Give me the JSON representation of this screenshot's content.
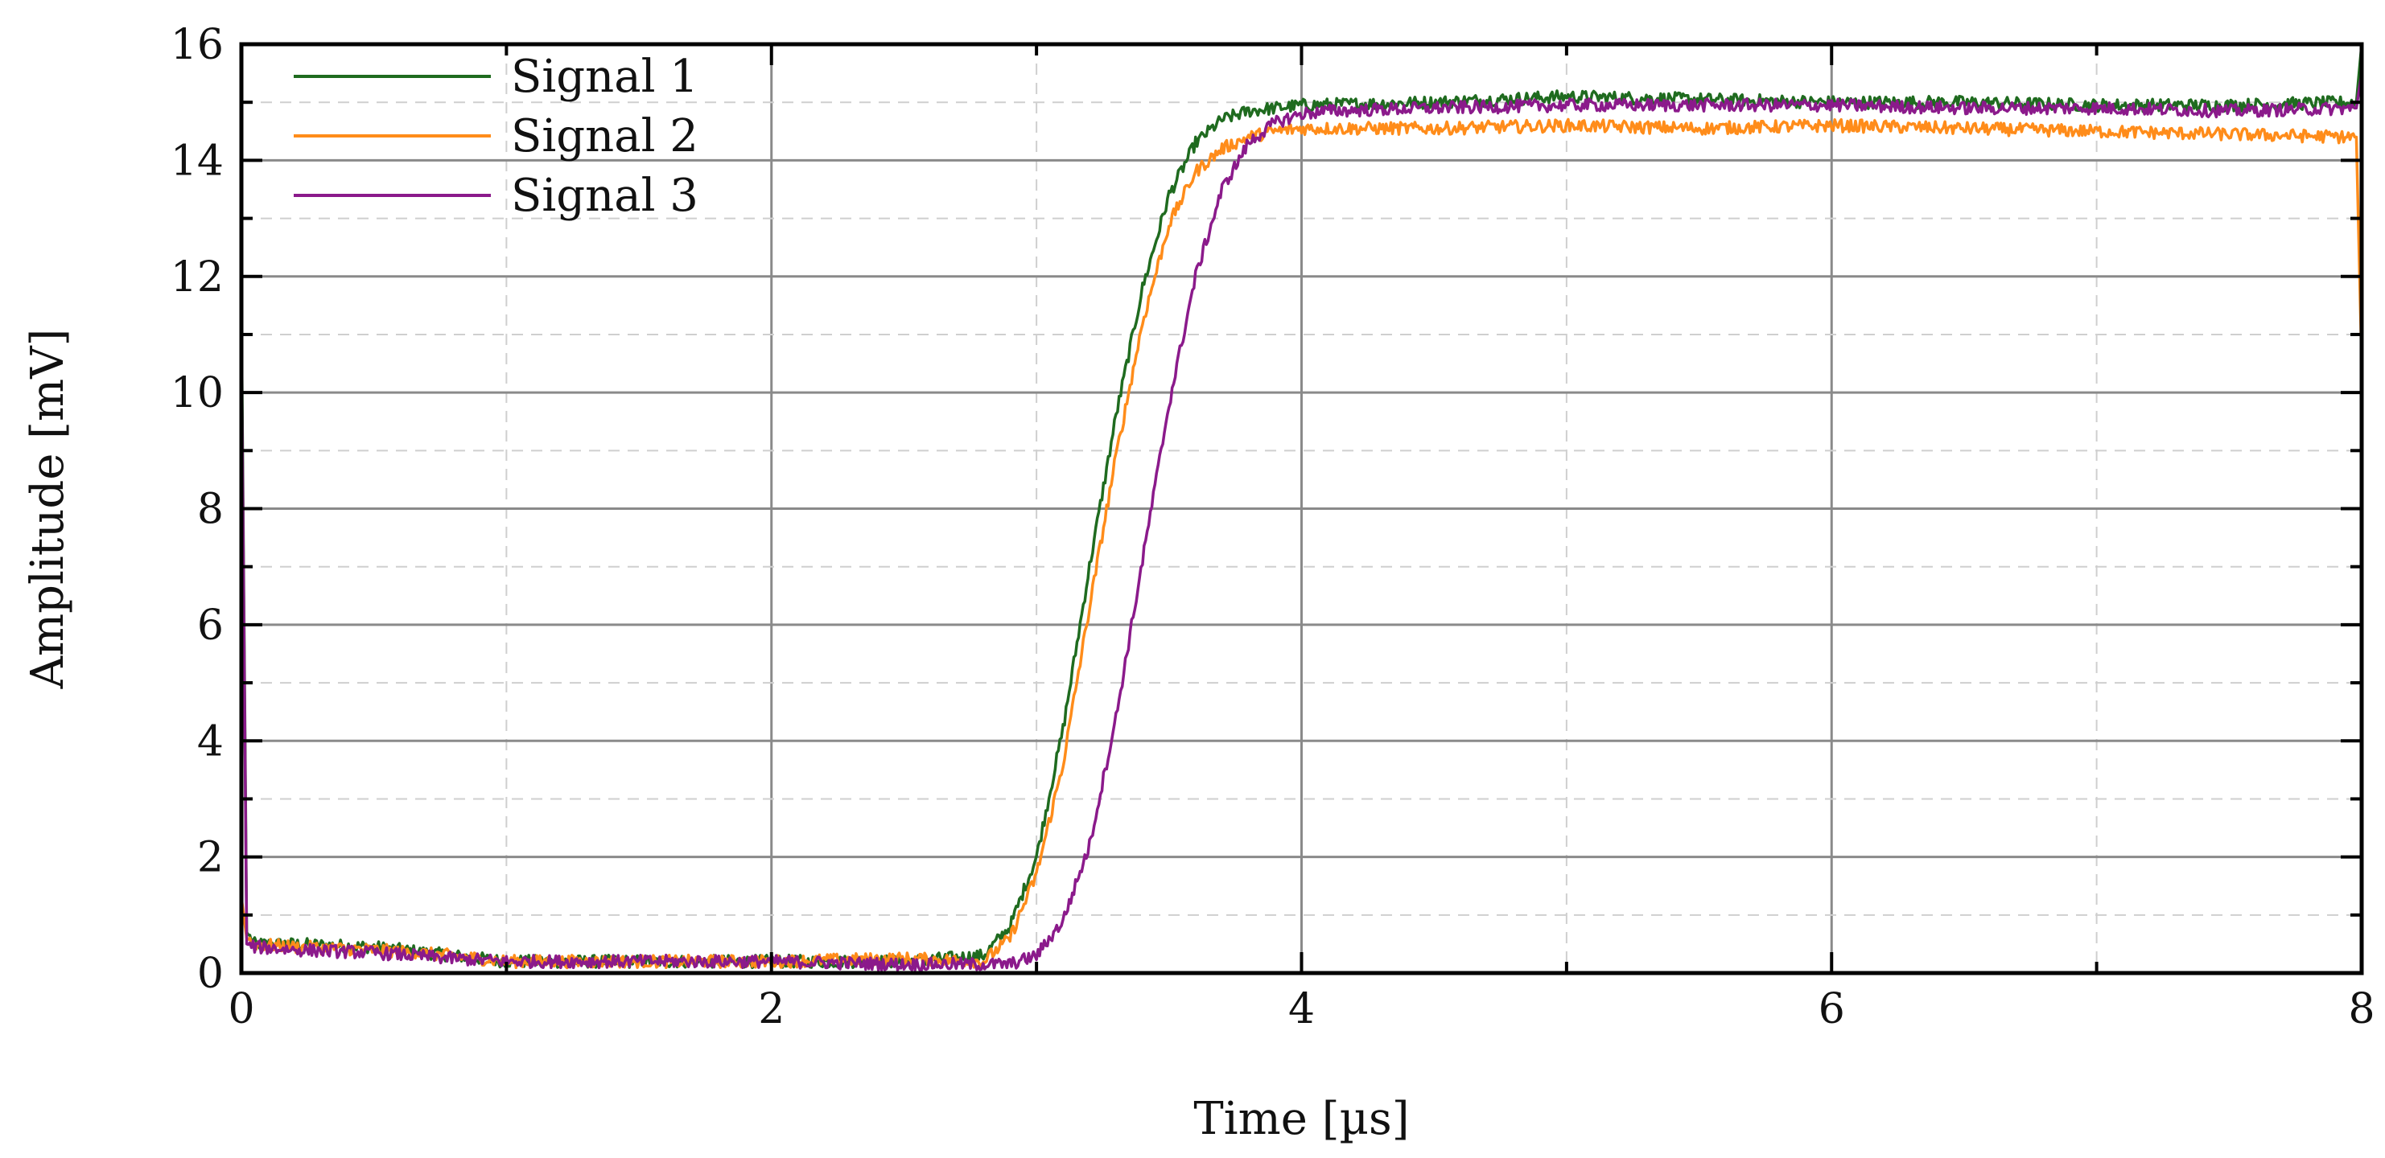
{
  "chart_data": {
    "type": "line",
    "xlabel": "Time [µs]",
    "ylabel": "Amplitude [mV]",
    "xlim": [
      0,
      8
    ],
    "ylim": [
      0,
      16
    ],
    "x_ticks": [
      0,
      2,
      4,
      6,
      8
    ],
    "y_ticks": [
      0,
      2,
      4,
      6,
      8,
      10,
      12,
      14,
      16
    ],
    "grid": true,
    "legend_position": "top-left",
    "series": [
      {
        "name": "Signal 1",
        "color": "#1f6b1f",
        "x": [
          0,
          0.02,
          0.05,
          0.2,
          0.5,
          0.8,
          1.0,
          1.5,
          2.0,
          2.5,
          2.8,
          2.9,
          3.0,
          3.1,
          3.2,
          3.3,
          3.4,
          3.5,
          3.6,
          3.7,
          3.8,
          3.9,
          4.0,
          4.5,
          5.0,
          5.5,
          6.0,
          6.5,
          7.0,
          7.5,
          7.98,
          8.0
        ],
        "values": [
          11.5,
          0.7,
          0.5,
          0.5,
          0.45,
          0.3,
          0.2,
          0.2,
          0.2,
          0.2,
          0.3,
          0.8,
          2.0,
          4.2,
          7.0,
          9.6,
          11.8,
          13.4,
          14.3,
          14.7,
          14.85,
          14.9,
          14.95,
          15.0,
          15.1,
          15.05,
          15.0,
          15.0,
          14.95,
          14.95,
          15.0,
          16.0
        ]
      },
      {
        "name": "Signal 2",
        "color": "#ff8c1a",
        "x": [
          0,
          0.02,
          0.05,
          0.2,
          0.5,
          0.8,
          1.0,
          1.5,
          2.0,
          2.5,
          2.8,
          2.9,
          3.0,
          3.1,
          3.2,
          3.3,
          3.4,
          3.5,
          3.6,
          3.7,
          3.8,
          3.9,
          4.0,
          4.5,
          5.0,
          5.5,
          6.0,
          6.5,
          7.0,
          7.5,
          7.98,
          8.0
        ],
        "values": [
          1.3,
          0.6,
          0.5,
          0.45,
          0.4,
          0.3,
          0.2,
          0.2,
          0.2,
          0.25,
          0.2,
          0.6,
          1.7,
          3.6,
          6.3,
          8.9,
          11.2,
          12.9,
          13.8,
          14.2,
          14.4,
          14.5,
          14.55,
          14.55,
          14.6,
          14.55,
          14.6,
          14.55,
          14.5,
          14.45,
          14.4,
          10.5
        ]
      },
      {
        "name": "Signal 3",
        "color": "#8b1a8b",
        "x": [
          0,
          0.02,
          0.05,
          0.2,
          0.5,
          0.8,
          1.0,
          1.5,
          2.0,
          2.5,
          2.9,
          3.0,
          3.1,
          3.2,
          3.3,
          3.4,
          3.5,
          3.6,
          3.7,
          3.8,
          3.9,
          4.0,
          4.1,
          4.5,
          5.0,
          5.5,
          6.0,
          6.5,
          7.0,
          7.5,
          7.98,
          8.0
        ],
        "values": [
          11.0,
          0.5,
          0.45,
          0.4,
          0.35,
          0.25,
          0.2,
          0.2,
          0.2,
          0.15,
          0.15,
          0.3,
          0.9,
          2.2,
          4.4,
          7.1,
          9.8,
          12.0,
          13.5,
          14.3,
          14.65,
          14.8,
          14.85,
          14.9,
          14.95,
          14.95,
          14.95,
          14.9,
          14.9,
          14.85,
          14.9,
          15.5
        ]
      }
    ]
  }
}
